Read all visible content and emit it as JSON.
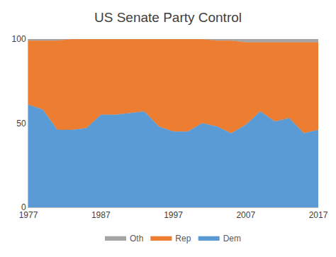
{
  "chart_data": {
    "type": "area",
    "title": "US Senate Party Control",
    "stacked": true,
    "grid": false,
    "legend": "bottom",
    "x": [
      1977,
      1979,
      1981,
      1983,
      1985,
      1987,
      1989,
      1991,
      1993,
      1995,
      1997,
      1999,
      2001,
      2003,
      2005,
      2007,
      2009,
      2011,
      2013,
      2015,
      2017
    ],
    "series": [
      {
        "name": "Dem",
        "color": "#5b9bd5",
        "values": [
          61,
          58,
          46,
          46,
          47,
          55,
          55,
          56,
          57,
          48,
          45,
          45,
          50,
          48,
          44,
          49,
          57,
          51,
          53,
          44,
          46
        ]
      },
      {
        "name": "Rep",
        "color": "#ed7d31",
        "values": [
          38,
          41,
          53,
          54,
          53,
          45,
          45,
          44,
          43,
          52,
          55,
          55,
          50,
          51,
          55,
          49,
          41,
          47,
          45,
          54,
          52
        ]
      },
      {
        "name": "Oth",
        "color": "#a5a5a5",
        "values": [
          1,
          1,
          1,
          0,
          0,
          0,
          0,
          0,
          0,
          0,
          0,
          0,
          0,
          1,
          1,
          2,
          2,
          2,
          2,
          2,
          2
        ]
      }
    ],
    "xlim": [
      1977,
      2017
    ],
    "xticks": [
      1977,
      1987,
      1997,
      2007,
      2017
    ],
    "ylim": [
      0,
      100
    ],
    "yticks": [
      0,
      50,
      100
    ]
  }
}
